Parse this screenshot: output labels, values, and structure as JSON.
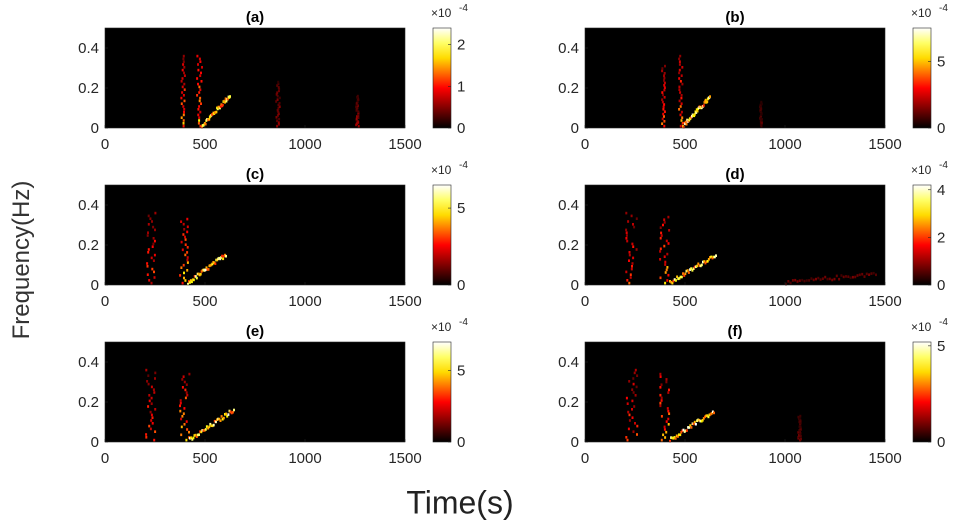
{
  "figure": {
    "ylabel": "Frequency(Hz)",
    "xlabel": "Time(s)"
  },
  "chart_data": [
    {
      "type": "heatmap",
      "title": "(a)",
      "xlim": [
        0,
        1500
      ],
      "ylim": [
        0,
        0.5
      ],
      "xticks": [
        0,
        500,
        1000,
        1500
      ],
      "yticks": [
        0,
        0.2,
        0.4
      ],
      "colorbar": {
        "scale_label": "×10^-4",
        "ticks": [
          0,
          1,
          2
        ],
        "max": 2.4,
        "colormap": "hot"
      },
      "ridges": [
        {
          "t_start": 375,
          "t_end": 395,
          "f_max": 0.35,
          "intensity": 0.7
        },
        {
          "t_start": 455,
          "t_end": 480,
          "f_max": 0.35,
          "intensity": 0.8
        },
        {
          "t_start": 480,
          "t_end": 620,
          "f_max": 0.16,
          "intensity": 0.9
        },
        {
          "t_start": 850,
          "t_end": 870,
          "f_max": 0.22,
          "intensity": 0.3
        },
        {
          "t_start": 1250,
          "t_end": 1265,
          "f_max": 0.15,
          "intensity": 0.3
        }
      ]
    },
    {
      "type": "heatmap",
      "title": "(b)",
      "xlim": [
        0,
        1500
      ],
      "ylim": [
        0,
        0.5
      ],
      "xticks": [
        0,
        500,
        1000,
        1500
      ],
      "yticks": [
        0,
        0.2,
        0.4
      ],
      "colorbar": {
        "scale_label": "×10^-4",
        "ticks": [
          0,
          5
        ],
        "max": 7.5,
        "colormap": "hot"
      },
      "ridges": [
        {
          "t_start": 380,
          "t_end": 395,
          "f_max": 0.3,
          "intensity": 0.6
        },
        {
          "t_start": 465,
          "t_end": 485,
          "f_max": 0.35,
          "intensity": 0.7
        },
        {
          "t_start": 485,
          "t_end": 620,
          "f_max": 0.15,
          "intensity": 1.0
        },
        {
          "t_start": 870,
          "t_end": 880,
          "f_max": 0.12,
          "intensity": 0.2
        }
      ]
    },
    {
      "type": "heatmap",
      "title": "(c)",
      "xlim": [
        0,
        1500
      ],
      "ylim": [
        0,
        0.5
      ],
      "xticks": [
        0,
        500,
        1000,
        1500
      ],
      "yticks": [
        0,
        0.2,
        0.4
      ],
      "colorbar": {
        "scale_label": "×10^-4",
        "ticks": [
          0,
          5
        ],
        "max": 6.5,
        "colormap": "hot"
      },
      "ridges": [
        {
          "t_start": 200,
          "t_end": 250,
          "f_max": 0.35,
          "intensity": 0.6
        },
        {
          "t_start": 370,
          "t_end": 410,
          "f_max": 0.32,
          "intensity": 0.8
        },
        {
          "t_start": 410,
          "t_end": 600,
          "f_max": 0.15,
          "intensity": 1.0
        }
      ]
    },
    {
      "type": "heatmap",
      "title": "(d)",
      "xlim": [
        0,
        1500
      ],
      "ylim": [
        0,
        0.5
      ],
      "xticks": [
        0,
        500,
        1000,
        1500
      ],
      "yticks": [
        0,
        0.2,
        0.4
      ],
      "colorbar": {
        "scale_label": "×10^-4",
        "ticks": [
          0,
          2,
          4
        ],
        "max": 4.2,
        "colormap": "hot"
      },
      "ridges": [
        {
          "t_start": 200,
          "t_end": 260,
          "f_max": 0.35,
          "intensity": 0.6
        },
        {
          "t_start": 370,
          "t_end": 420,
          "f_max": 0.33,
          "intensity": 0.8
        },
        {
          "t_start": 420,
          "t_end": 650,
          "f_max": 0.15,
          "intensity": 1.0
        },
        {
          "t_start": 1000,
          "t_end": 1450,
          "f_max": 0.05,
          "intensity": 0.2
        }
      ]
    },
    {
      "type": "heatmap",
      "title": "(e)",
      "xlim": [
        0,
        1500
      ],
      "ylim": [
        0,
        0.5
      ],
      "xticks": [
        0,
        500,
        1000,
        1500
      ],
      "yticks": [
        0,
        0.2,
        0.4
      ],
      "colorbar": {
        "scale_label": "×10^-4",
        "ticks": [
          0,
          5
        ],
        "max": 7,
        "colormap": "hot"
      },
      "ridges": [
        {
          "t_start": 200,
          "t_end": 250,
          "f_max": 0.35,
          "intensity": 0.6
        },
        {
          "t_start": 370,
          "t_end": 420,
          "f_max": 0.33,
          "intensity": 0.8
        },
        {
          "t_start": 420,
          "t_end": 640,
          "f_max": 0.16,
          "intensity": 1.0
        }
      ]
    },
    {
      "type": "heatmap",
      "title": "(f)",
      "xlim": [
        0,
        1500
      ],
      "ylim": [
        0,
        0.5
      ],
      "xticks": [
        0,
        500,
        1000,
        1500
      ],
      "yticks": [
        0,
        0.2,
        0.4
      ],
      "colorbar": {
        "scale_label": "×10^-4",
        "ticks": [
          0,
          5
        ],
        "max": 5.2,
        "colormap": "hot"
      },
      "ridges": [
        {
          "t_start": 200,
          "t_end": 260,
          "f_max": 0.35,
          "intensity": 0.6
        },
        {
          "t_start": 370,
          "t_end": 420,
          "f_max": 0.33,
          "intensity": 0.8
        },
        {
          "t_start": 420,
          "t_end": 640,
          "f_max": 0.15,
          "intensity": 1.0
        },
        {
          "t_start": 1060,
          "t_end": 1075,
          "f_max": 0.12,
          "intensity": 0.25
        }
      ]
    }
  ]
}
